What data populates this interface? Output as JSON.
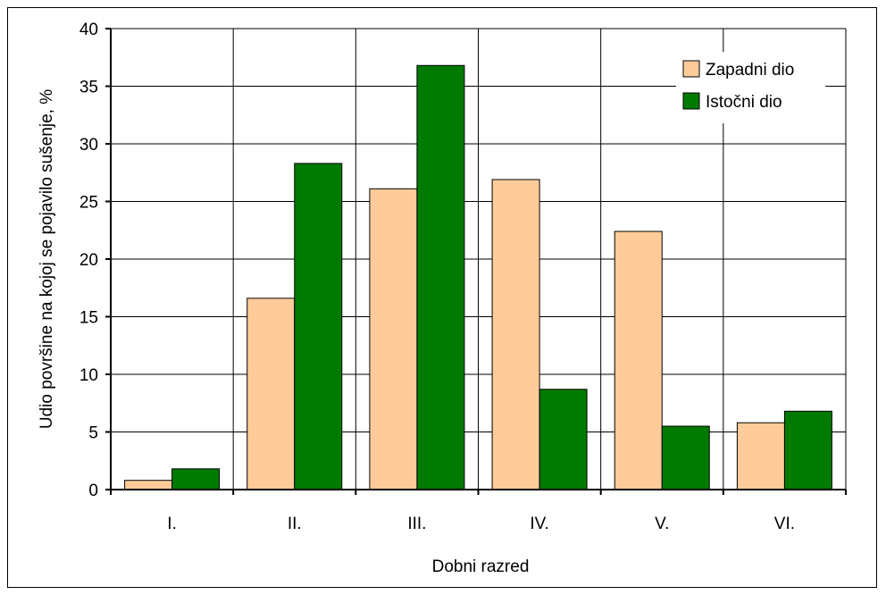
{
  "chart_data": {
    "type": "bar",
    "title": "",
    "xlabel": "Dobni razred",
    "ylabel": "Udio površine na kojoj se pojavilo sušenje, %",
    "categories": [
      "I.",
      "II.",
      "III.",
      "IV.",
      "V.",
      "VI."
    ],
    "series": [
      {
        "name": "Zapadni dio",
        "color": "#FFCC99",
        "values": [
          0.8,
          16.6,
          26.1,
          26.9,
          22.4,
          5.8
        ]
      },
      {
        "name": "Istočni dio",
        "color": "#007A00",
        "values": [
          1.8,
          28.3,
          36.8,
          8.7,
          5.5,
          6.8
        ]
      }
    ],
    "ylim": [
      0,
      40
    ],
    "yticks": [
      0,
      5,
      10,
      15,
      20,
      25,
      30,
      35,
      40
    ],
    "grid": true,
    "legend": "top-right"
  }
}
